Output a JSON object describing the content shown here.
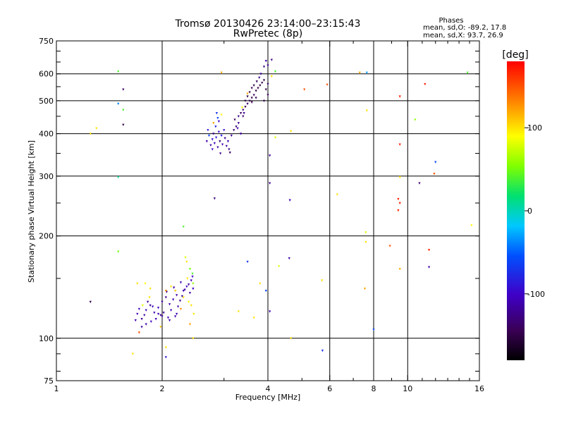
{
  "header": {
    "title_line1": "Tromsø 20130426 23:14:00–23:15:43",
    "title_line2": "RwPretec (8p)"
  },
  "phase_info": {
    "title": "Phases",
    "line1": "mean, sd,O: -89.2, 17.8",
    "line2": "mean, sd,X:  93.7, 26.9"
  },
  "colorbar": {
    "label": "[deg]",
    "ticks": [
      {
        "value": 100,
        "label": "100"
      },
      {
        "value": 0,
        "label": "0"
      },
      {
        "value": -100,
        "label": "-100"
      }
    ],
    "range": [
      -180,
      180
    ]
  },
  "chart_data": {
    "type": "scatter",
    "title": "Tromsø 20130426 23:14:00–23:15:43",
    "subtitle": "RwPretec (8p)",
    "xlabel": "Frequency [MHz]",
    "ylabel": "Stationary phase Virtual Height [km]",
    "x_scale": "log",
    "y_scale": "log",
    "xlim": [
      1,
      16
    ],
    "ylim": [
      75,
      750
    ],
    "x_ticks": [
      {
        "value": 1,
        "label": "1"
      },
      {
        "value": 2,
        "label": "2"
      },
      {
        "value": 4,
        "label": "4"
      },
      {
        "value": 6,
        "label": "6"
      },
      {
        "value": 8,
        "label": "8"
      },
      {
        "value": 10,
        "label": "10"
      },
      {
        "value": 16,
        "label": "16"
      }
    ],
    "y_ticks": [
      {
        "value": 75,
        "label": "75"
      },
      {
        "value": 100,
        "label": "100"
      },
      {
        "value": 200,
        "label": "200"
      },
      {
        "value": 300,
        "label": "300"
      },
      {
        "value": 400,
        "label": "400"
      },
      {
        "value": 500,
        "label": "500"
      },
      {
        "value": 600,
        "label": "600"
      },
      {
        "value": 750,
        "label": "750"
      }
    ],
    "x_gridlines": [
      2,
      4,
      6,
      8,
      10
    ],
    "y_gridlines": [
      100,
      200,
      300,
      400,
      500,
      600
    ],
    "grid": true,
    "color_scale": "phase_deg",
    "series": [
      {
        "points": [
          [
            2.75,
            370,
            -110
          ],
          [
            2.78,
            385,
            -95
          ],
          [
            2.8,
            400,
            -120
          ],
          [
            2.82,
            375,
            -105
          ],
          [
            2.85,
            390,
            -90
          ],
          [
            2.88,
            365,
            -115
          ],
          [
            2.9,
            405,
            -100
          ],
          [
            2.92,
            380,
            -130
          ],
          [
            2.95,
            395,
            -85
          ],
          [
            2.97,
            372,
            -110
          ],
          [
            3.0,
            410,
            -95
          ],
          [
            3.02,
            388,
            -120
          ],
          [
            2.84,
            420,
            -80
          ],
          [
            2.9,
            435,
            -100
          ],
          [
            3.05,
            368,
            -115
          ],
          [
            3.1,
            360,
            -125
          ],
          [
            3.08,
            380,
            -105
          ],
          [
            2.88,
            445,
            -60
          ],
          [
            2.95,
            455,
            90
          ],
          [
            2.8,
            430,
            120
          ],
          [
            2.86,
            460,
            -70
          ],
          [
            2.72,
            395,
            -60
          ],
          [
            2.7,
            410,
            -90
          ],
          [
            2.68,
            380,
            -110
          ],
          [
            2.78,
            360,
            -100
          ],
          [
            2.93,
            350,
            -120
          ],
          [
            3.12,
            352,
            -140
          ],
          [
            3.15,
            395,
            -120
          ],
          [
            3.2,
            410,
            -135
          ],
          [
            3.25,
            420,
            -130
          ],
          [
            3.22,
            440,
            -140
          ],
          [
            3.3,
            450,
            -125
          ],
          [
            3.35,
            460,
            -140
          ],
          [
            3.4,
            470,
            -130
          ],
          [
            3.45,
            480,
            -145
          ],
          [
            3.5,
            490,
            -135
          ],
          [
            3.55,
            500,
            -140
          ],
          [
            3.6,
            510,
            -150
          ],
          [
            3.65,
            520,
            -140
          ],
          [
            3.7,
            535,
            -150
          ],
          [
            3.75,
            545,
            -145
          ],
          [
            3.8,
            555,
            -150
          ],
          [
            3.85,
            565,
            -140
          ],
          [
            3.9,
            575,
            -155
          ],
          [
            3.5,
            515,
            -150
          ],
          [
            3.55,
            530,
            -150
          ],
          [
            3.6,
            545,
            -145
          ],
          [
            3.65,
            555,
            -150
          ],
          [
            3.72,
            570,
            -140
          ],
          [
            3.78,
            585,
            -130
          ],
          [
            3.82,
            600,
            -120
          ],
          [
            3.9,
            630,
            -125
          ],
          [
            3.95,
            655,
            -110
          ],
          [
            3.3,
            430,
            -125
          ],
          [
            3.4,
            450,
            -140
          ],
          [
            3.45,
            500,
            -150
          ],
          [
            3.38,
            478,
            90
          ],
          [
            3.5,
            525,
            120
          ],
          [
            3.42,
            460,
            -120
          ],
          [
            3.28,
            415,
            -110
          ],
          [
            3.6,
            495,
            -145
          ],
          [
            3.7,
            510,
            -140
          ],
          [
            3.95,
            540,
            -150
          ],
          [
            4.0,
            560,
            -140
          ],
          [
            4.0,
            520,
            -140
          ],
          [
            3.9,
            500,
            -145
          ],
          [
            3.35,
            400,
            -115
          ],
          [
            1.7,
            118,
            -110
          ],
          [
            1.75,
            114,
            -120
          ],
          [
            1.8,
            121,
            -105
          ],
          [
            1.85,
            125,
            -115
          ],
          [
            1.9,
            119,
            -110
          ],
          [
            1.95,
            123,
            -100
          ],
          [
            2.0,
            128,
            -115
          ],
          [
            2.05,
            132,
            -120
          ],
          [
            2.1,
            126,
            -110
          ],
          [
            2.15,
            130,
            -105
          ],
          [
            2.2,
            134,
            -115
          ],
          [
            2.25,
            129,
            -120
          ],
          [
            2.3,
            138,
            -110
          ],
          [
            2.35,
            142,
            -105
          ],
          [
            2.4,
            136,
            -115
          ],
          [
            1.72,
            122,
            -100
          ],
          [
            1.78,
            117,
            -115
          ],
          [
            1.82,
            128,
            -120
          ],
          [
            1.88,
            124,
            -105
          ],
          [
            1.92,
            114,
            -110
          ],
          [
            1.98,
            117,
            -120
          ],
          [
            2.02,
            119,
            -115
          ],
          [
            2.08,
            115,
            -110
          ],
          [
            2.12,
            121,
            -105
          ],
          [
            2.18,
            116,
            -110
          ],
          [
            2.22,
            124,
            -115
          ],
          [
            2.28,
            133,
            -120
          ],
          [
            2.32,
            139,
            -110
          ],
          [
            2.38,
            144,
            -115
          ],
          [
            2.42,
            148,
            -110
          ],
          [
            2.45,
            140,
            -100
          ],
          [
            2.0,
            116,
            -115
          ],
          [
            1.95,
            118,
            -110
          ],
          [
            2.06,
            137,
            -120
          ],
          [
            2.16,
            141,
            -115
          ],
          [
            2.26,
            146,
            -110
          ],
          [
            2.44,
            152,
            -100
          ],
          [
            1.86,
            112,
            -105
          ],
          [
            1.8,
            110,
            -110
          ],
          [
            1.75,
            108,
            -115
          ],
          [
            1.68,
            113,
            -110
          ],
          [
            2.1,
            113,
            -110
          ],
          [
            2.2,
            118,
            -110
          ],
          [
            2.35,
            168,
            100
          ],
          [
            2.33,
            173,
            80
          ],
          [
            2.4,
            160,
            50
          ],
          [
            2.36,
            150,
            100
          ],
          [
            2.44,
            155,
            40
          ],
          [
            2.3,
            132,
            100
          ],
          [
            2.42,
            125,
            100
          ],
          [
            2.46,
            118,
            100
          ],
          [
            2.4,
            110,
            120
          ],
          [
            2.26,
            122,
            130
          ],
          [
            2.18,
            138,
            110
          ],
          [
            2.12,
            142,
            100
          ],
          [
            2.45,
            145,
            60
          ],
          [
            2.38,
            128,
            90
          ],
          [
            1.76,
            125,
            80
          ],
          [
            1.84,
            132,
            100
          ],
          [
            1.98,
            108,
            110
          ],
          [
            1.72,
            104,
            150
          ],
          [
            1.79,
            145,
            90
          ],
          [
            2.05,
            138,
            130
          ],
          [
            1.5,
            610,
            40
          ],
          [
            1.55,
            540,
            -140
          ],
          [
            1.5,
            490,
            -40
          ],
          [
            1.55,
            470,
            40
          ],
          [
            1.55,
            425,
            -150
          ],
          [
            1.25,
            400,
            100
          ],
          [
            1.3,
            415,
            100
          ],
          [
            1.5,
            298,
            10
          ],
          [
            1.5,
            180,
            50
          ],
          [
            1.25,
            128,
            -150
          ],
          [
            1.65,
            90,
            100
          ],
          [
            1.7,
            145,
            100
          ],
          [
            1.85,
            140,
            100
          ],
          [
            2.05,
            94,
            100
          ],
          [
            2.05,
            88,
            -90
          ],
          [
            2.3,
            213,
            40
          ],
          [
            2.45,
            100,
            100
          ],
          [
            2.82,
            258,
            -130
          ],
          [
            2.95,
            605,
            120
          ],
          [
            3.3,
            120,
            100
          ],
          [
            3.5,
            168,
            -70
          ],
          [
            3.65,
            115,
            100
          ],
          [
            3.8,
            145,
            100
          ],
          [
            3.95,
            138,
            -60
          ],
          [
            4.05,
            120,
            -110
          ],
          [
            4.1,
            660,
            -120
          ],
          [
            4.0,
            635,
            -120
          ],
          [
            4.2,
            610,
            40
          ],
          [
            4.1,
            590,
            100
          ],
          [
            4.05,
            345,
            -120
          ],
          [
            4.05,
            286,
            -120
          ],
          [
            4.2,
            390,
            80
          ],
          [
            4.3,
            163,
            80
          ],
          [
            4.62,
            255,
            -110
          ],
          [
            4.65,
            407,
            100
          ],
          [
            4.6,
            172,
            -110
          ],
          [
            4.65,
            100,
            100
          ],
          [
            5.08,
            540,
            150
          ],
          [
            5.72,
            92,
            -70
          ],
          [
            5.7,
            148,
            100
          ],
          [
            5.9,
            558,
            150
          ],
          [
            6.3,
            265,
            100
          ],
          [
            7.3,
            605,
            120
          ],
          [
            7.6,
            205,
            80
          ],
          [
            7.6,
            192,
            100
          ],
          [
            7.55,
            140,
            120
          ],
          [
            7.65,
            605,
            -30
          ],
          [
            7.65,
            468,
            100
          ],
          [
            8.0,
            106,
            -60
          ],
          [
            8.9,
            187,
            150
          ],
          [
            9.5,
            515,
            170
          ],
          [
            9.5,
            372,
            170
          ],
          [
            9.4,
            257,
            170
          ],
          [
            9.5,
            250,
            170
          ],
          [
            9.4,
            238,
            170
          ],
          [
            9.5,
            298,
            100
          ],
          [
            9.5,
            160,
            120
          ],
          [
            10.5,
            440,
            60
          ],
          [
            10.8,
            286,
            -130
          ],
          [
            11.2,
            560,
            170
          ],
          [
            11.5,
            182,
            170
          ],
          [
            11.5,
            162,
            -110
          ],
          [
            12.0,
            330,
            -60
          ],
          [
            11.9,
            305,
            150
          ],
          [
            14.8,
            605,
            40
          ],
          [
            15.2,
            215,
            90
          ]
        ]
      }
    ]
  }
}
